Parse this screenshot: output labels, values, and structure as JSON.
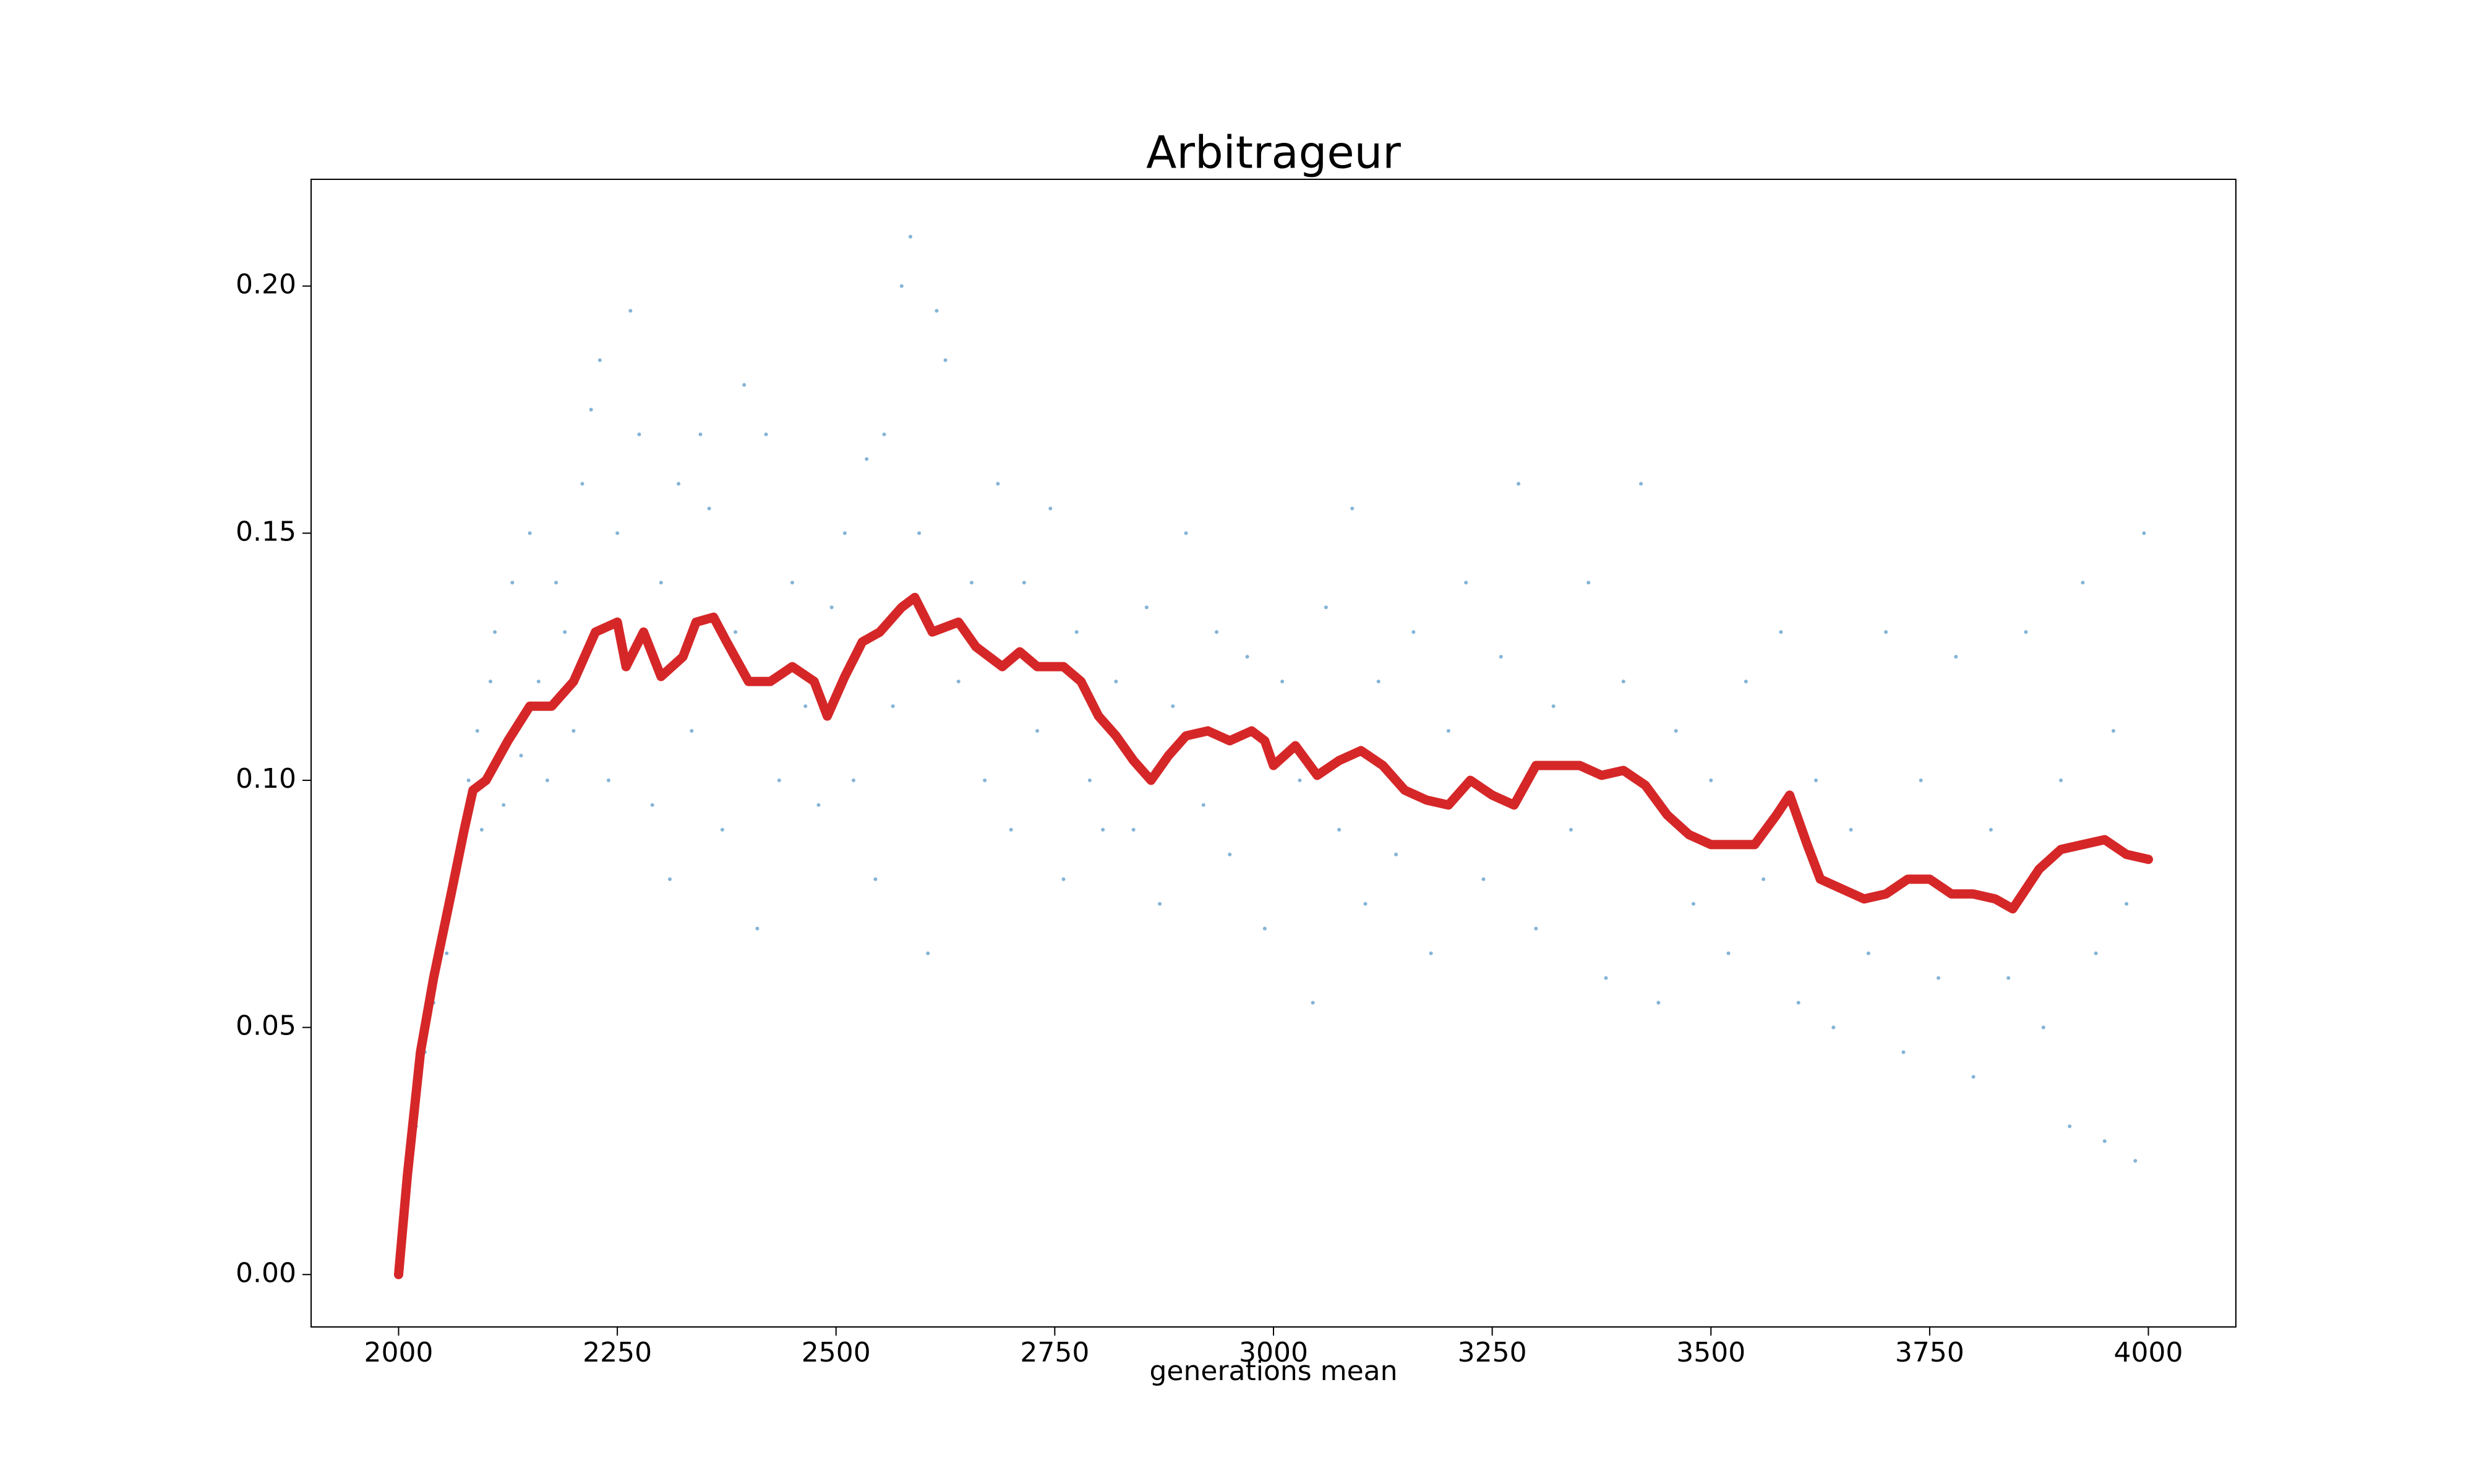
{
  "chart_data": {
    "type": "line",
    "title": "Arbitrageur",
    "x_label": "generations mean",
    "xlim": [
      1900,
      4100
    ],
    "ylim": [
      -0.0106,
      0.2216
    ],
    "xticks": [
      2000,
      2250,
      2500,
      2750,
      3000,
      3250,
      3500,
      3750,
      4000
    ],
    "yticks": [
      {
        "value": 0,
        "label": "0.00"
      },
      0.05,
      {
        "value": 0.1,
        "label": "0.10"
      },
      0.15,
      {
        "value": 0.2,
        "label": "0.20"
      }
    ],
    "series": [
      {
        "type": "scatter",
        "color": "#1f77b4",
        "x": [
          2005,
          2015,
          2020,
          2030,
          2040,
          2050,
          2055,
          2065,
          2070,
          2080,
          2090,
          2095,
          2105,
          2110,
          2120,
          2130,
          2140,
          2150,
          2160,
          2170,
          2180,
          2190,
          2200,
          2210,
          2220,
          2230,
          2240,
          2250,
          2265,
          2275,
          2290,
          2300,
          2310,
          2320,
          2335,
          2345,
          2355,
          2370,
          2385,
          2395,
          2410,
          2420,
          2435,
          2450,
          2465,
          2480,
          2495,
          2510,
          2520,
          2535,
          2545,
          2555,
          2565,
          2575,
          2585,
          2595,
          2605,
          2615,
          2625,
          2640,
          2655,
          2670,
          2685,
          2700,
          2715,
          2730,
          2745,
          2760,
          2775,
          2790,
          2805,
          2820,
          2840,
          2855,
          2870,
          2885,
          2900,
          2920,
          2935,
          2950,
          2970,
          2990,
          3010,
          3030,
          3045,
          3060,
          3075,
          3090,
          3105,
          3120,
          3140,
          3160,
          3180,
          3200,
          3220,
          3240,
          3260,
          3280,
          3300,
          3320,
          3340,
          3360,
          3380,
          3400,
          3420,
          3440,
          3460,
          3480,
          3500,
          3520,
          3540,
          3560,
          3580,
          3600,
          3620,
          3640,
          3660,
          3680,
          3700,
          3720,
          3740,
          3760,
          3780,
          3800,
          3820,
          3840,
          3860,
          3880,
          3900,
          3910,
          3925,
          3940,
          3950,
          3960,
          3975,
          3985,
          3995
        ],
        "values": [
          0.005,
          0.025,
          0.03,
          0.045,
          0.055,
          0.07,
          0.065,
          0.08,
          0.085,
          0.1,
          0.11,
          0.09,
          0.12,
          0.13,
          0.095,
          0.14,
          0.105,
          0.15,
          0.12,
          0.1,
          0.14,
          0.13,
          0.11,
          0.16,
          0.175,
          0.185,
          0.1,
          0.15,
          0.195,
          0.17,
          0.095,
          0.14,
          0.08,
          0.16,
          0.11,
          0.17,
          0.155,
          0.09,
          0.13,
          0.18,
          0.07,
          0.17,
          0.1,
          0.14,
          0.115,
          0.095,
          0.135,
          0.15,
          0.1,
          0.165,
          0.08,
          0.17,
          0.115,
          0.2,
          0.21,
          0.15,
          0.065,
          0.195,
          0.185,
          0.12,
          0.14,
          0.1,
          0.16,
          0.09,
          0.14,
          0.11,
          0.155,
          0.08,
          0.13,
          0.1,
          0.09,
          0.12,
          0.09,
          0.135,
          0.075,
          0.115,
          0.15,
          0.095,
          0.13,
          0.085,
          0.125,
          0.07,
          0.12,
          0.1,
          0.055,
          0.135,
          0.09,
          0.155,
          0.075,
          0.12,
          0.085,
          0.13,
          0.065,
          0.11,
          0.14,
          0.08,
          0.125,
          0.16,
          0.07,
          0.115,
          0.09,
          0.14,
          0.06,
          0.12,
          0.16,
          0.055,
          0.11,
          0.075,
          0.1,
          0.065,
          0.12,
          0.08,
          0.13,
          0.055,
          0.1,
          0.05,
          0.09,
          0.065,
          0.13,
          0.045,
          0.1,
          0.06,
          0.125,
          0.04,
          0.09,
          0.06,
          0.13,
          0.05,
          0.1,
          0.03,
          0.14,
          0.065,
          0.027,
          0.11,
          0.075,
          0.023,
          0.15
        ]
      },
      {
        "type": "line",
        "color": "#d62728",
        "x": [
          2000,
          2010,
          2025,
          2040,
          2060,
          2075,
          2085,
          2100,
          2125,
          2150,
          2175,
          2200,
          2225,
          2250,
          2260,
          2280,
          2300,
          2325,
          2340,
          2360,
          2375,
          2400,
          2425,
          2450,
          2475,
          2490,
          2510,
          2530,
          2550,
          2575,
          2590,
          2610,
          2640,
          2660,
          2690,
          2710,
          2730,
          2760,
          2780,
          2800,
          2820,
          2840,
          2860,
          2880,
          2900,
          2925,
          2950,
          2975,
          2990,
          3000,
          3025,
          3050,
          3075,
          3100,
          3125,
          3150,
          3175,
          3200,
          3225,
          3250,
          3275,
          3300,
          3325,
          3350,
          3375,
          3400,
          3425,
          3450,
          3475,
          3500,
          3525,
          3550,
          3575,
          3590,
          3610,
          3625,
          3650,
          3675,
          3700,
          3725,
          3750,
          3775,
          3800,
          3825,
          3845,
          3860,
          3875,
          3900,
          3925,
          3950,
          3975,
          4000
        ],
        "values": [
          0,
          0.02,
          0.045,
          0.06,
          0.077,
          0.09,
          0.098,
          0.1,
          0.108,
          0.115,
          0.115,
          0.12,
          0.13,
          0.132,
          0.123,
          0.13,
          0.121,
          0.125,
          0.132,
          0.133,
          0.128,
          0.12,
          0.12,
          0.123,
          0.12,
          0.113,
          0.121,
          0.128,
          0.13,
          0.135,
          0.137,
          0.13,
          0.132,
          0.127,
          0.123,
          0.126,
          0.123,
          0.123,
          0.12,
          0.113,
          0.109,
          0.104,
          0.1,
          0.105,
          0.109,
          0.11,
          0.108,
          0.11,
          0.108,
          0.103,
          0.107,
          0.101,
          0.104,
          0.106,
          0.103,
          0.098,
          0.096,
          0.095,
          0.1,
          0.097,
          0.095,
          0.103,
          0.103,
          0.103,
          0.101,
          0.102,
          0.099,
          0.093,
          0.089,
          0.087,
          0.087,
          0.087,
          0.093,
          0.097,
          0.087,
          0.08,
          0.078,
          0.076,
          0.077,
          0.08,
          0.08,
          0.077,
          0.077,
          0.076,
          0.074,
          0.078,
          0.082,
          0.086,
          0.087,
          0.088,
          0.085,
          0.084
        ]
      }
    ]
  }
}
